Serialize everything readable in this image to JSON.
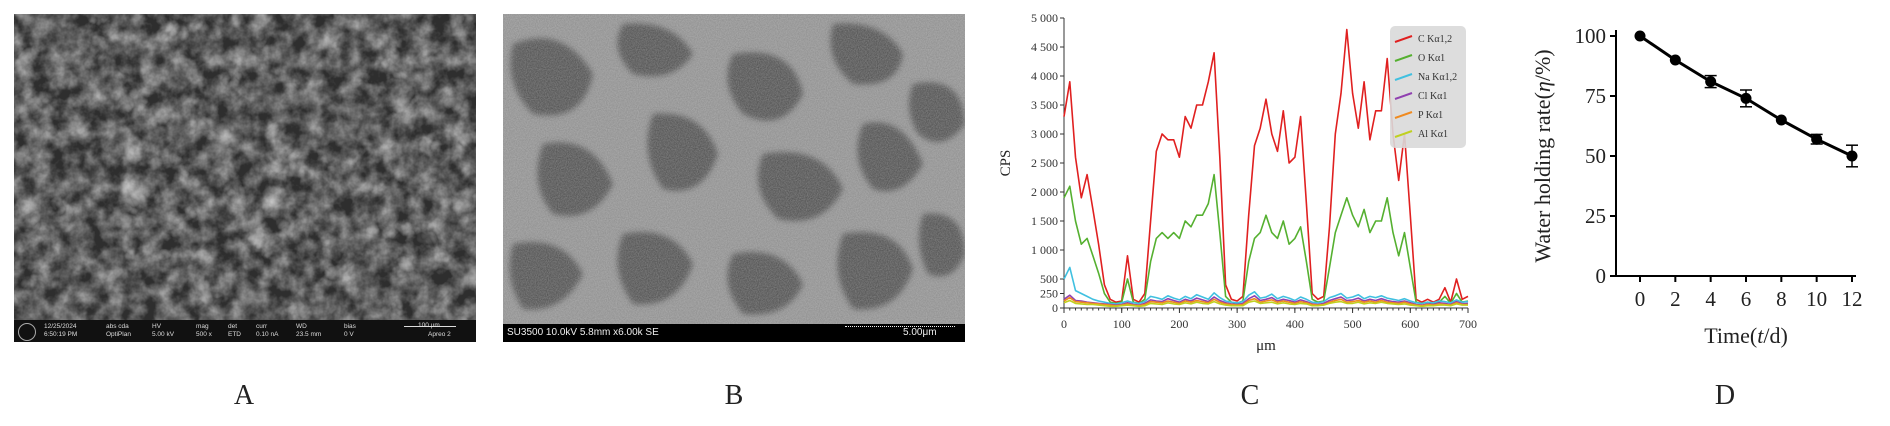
{
  "panels": {
    "a": {
      "letter": "A",
      "databar": {
        "date": "12/25/2024",
        "time": "6:50:19 PM",
        "detector_label": "HV",
        "detector_value": "5.00 kV",
        "mag_label": "mag",
        "mag_value": "500 x",
        "det_label": "det",
        "det_value": "ETD",
        "curr_label": "curr",
        "curr_value": "0.10 nA",
        "wd_label": "WD",
        "wd_value": "23.5 mm",
        "bias_label": "bias",
        "bias_value": "0 V",
        "mode_label": "abs cda",
        "mode_value": "OptiPlan",
        "scale_label": "100 μm",
        "brand": "Apreo 2"
      }
    },
    "b": {
      "letter": "B",
      "databar_left": "SU3500 10.0kV 5.8mm x6.00k SE",
      "databar_right": "5.00μm"
    },
    "c": {
      "letter": "C"
    },
    "d": {
      "letter": "D"
    }
  },
  "chart_data": [
    {
      "type": "line",
      "panel": "C",
      "xlabel": "μm",
      "ylabel": "CPS",
      "xlim": [
        0,
        700
      ],
      "ylim": [
        0,
        5000
      ],
      "xticks": [
        0,
        100,
        200,
        300,
        400,
        500,
        600,
        700
      ],
      "yticks": [
        0,
        250,
        500,
        1000,
        1500,
        2000,
        2500,
        3000,
        3500,
        4000,
        4500,
        5000
      ],
      "ytick_labels": [
        "0",
        "250",
        "500",
        "1 000",
        "1 500",
        "2 000",
        "2 500",
        "3 000",
        "3 500",
        "4 000",
        "4 500",
        "5 000"
      ],
      "legend_position": "top-right",
      "x": [
        0,
        10,
        20,
        30,
        40,
        50,
        60,
        70,
        80,
        90,
        100,
        110,
        120,
        130,
        140,
        150,
        160,
        170,
        180,
        190,
        200,
        210,
        220,
        230,
        240,
        250,
        260,
        270,
        280,
        290,
        300,
        310,
        320,
        330,
        340,
        350,
        360,
        370,
        380,
        390,
        400,
        410,
        420,
        430,
        440,
        450,
        460,
        470,
        480,
        490,
        500,
        510,
        520,
        530,
        540,
        550,
        560,
        570,
        580,
        590,
        600,
        610,
        620,
        630,
        640,
        650,
        660,
        670,
        680,
        690,
        700
      ],
      "series": [
        {
          "name": "C Kα1,2",
          "color": "#e02020",
          "values": [
            3300,
            3900,
            2600,
            1900,
            2300,
            1700,
            1100,
            400,
            150,
            100,
            120,
            900,
            150,
            100,
            250,
            1500,
            2700,
            3000,
            2900,
            2900,
            2600,
            3300,
            3100,
            3500,
            3500,
            3900,
            4400,
            2600,
            400,
            150,
            120,
            200,
            1600,
            2800,
            3100,
            3600,
            3000,
            2700,
            3400,
            2500,
            2600,
            3300,
            1800,
            250,
            150,
            200,
            1400,
            3000,
            3700,
            4800,
            3700,
            3100,
            3900,
            2900,
            3400,
            3400,
            4300,
            3000,
            2200,
            3000,
            1600,
            150,
            100,
            150,
            100,
            150,
            350,
            100,
            500,
            150,
            200
          ]
        },
        {
          "name": "O Kα1",
          "color": "#55b030",
          "values": [
            1900,
            2100,
            1500,
            1100,
            1200,
            900,
            600,
            250,
            100,
            80,
            100,
            500,
            100,
            80,
            150,
            800,
            1200,
            1300,
            1200,
            1300,
            1200,
            1500,
            1400,
            1600,
            1600,
            1800,
            2300,
            1300,
            200,
            100,
            80,
            120,
            800,
            1200,
            1300,
            1600,
            1300,
            1200,
            1500,
            1100,
            1200,
            1400,
            800,
            150,
            100,
            120,
            700,
            1300,
            1600,
            1900,
            1600,
            1400,
            1700,
            1300,
            1500,
            1500,
            1900,
            1300,
            900,
            1300,
            700,
            100,
            80,
            100,
            80,
            100,
            200,
            80,
            250,
            100,
            120
          ]
        },
        {
          "name": "Na Kα1,2",
          "color": "#40c0e0",
          "values": [
            500,
            700,
            300,
            250,
            200,
            150,
            120,
            100,
            80,
            70,
            90,
            120,
            90,
            80,
            110,
            200,
            180,
            150,
            210,
            170,
            140,
            200,
            160,
            230,
            190,
            150,
            260,
            180,
            120,
            100,
            90,
            110,
            220,
            280,
            170,
            190,
            240,
            160,
            200,
            170,
            130,
            190,
            150,
            100,
            90,
            110,
            180,
            210,
            250,
            170,
            190,
            230,
            160,
            200,
            180,
            210,
            170,
            150,
            130,
            160,
            120,
            90,
            80,
            100,
            90,
            120,
            110,
            90,
            140,
            100,
            110
          ]
        },
        {
          "name": "Cl Kα1",
          "color": "#9040b0",
          "values": [
            150,
            220,
            130,
            120,
            100,
            90,
            80,
            70,
            60,
            50,
            60,
            90,
            60,
            50,
            80,
            140,
            120,
            110,
            160,
            130,
            100,
            150,
            120,
            170,
            140,
            110,
            190,
            130,
            90,
            70,
            60,
            80,
            160,
            210,
            130,
            150,
            180,
            120,
            150,
            130,
            100,
            140,
            110,
            70,
            60,
            80,
            130,
            160,
            190,
            130,
            140,
            170,
            120,
            150,
            130,
            160,
            130,
            110,
            100,
            120,
            90,
            60,
            50,
            70,
            60,
            90,
            80,
            60,
            110,
            70,
            80
          ]
        },
        {
          "name": "P Kα1",
          "color": "#f08a20",
          "values": [
            120,
            180,
            110,
            100,
            90,
            80,
            70,
            60,
            50,
            40,
            50,
            70,
            50,
            40,
            60,
            110,
            100,
            90,
            120,
            100,
            80,
            120,
            100,
            130,
            110,
            90,
            150,
            100,
            70,
            60,
            50,
            60,
            130,
            160,
            100,
            120,
            140,
            100,
            120,
            100,
            80,
            110,
            90,
            60,
            50,
            60,
            100,
            130,
            150,
            100,
            110,
            130,
            100,
            120,
            100,
            130,
            100,
            90,
            80,
            100,
            70,
            50,
            40,
            60,
            50,
            70,
            60,
            50,
            90,
            60,
            60
          ]
        },
        {
          "name": "Al Kα1",
          "color": "#c0d020",
          "values": [
            90,
            130,
            80,
            70,
            60,
            60,
            50,
            40,
            30,
            30,
            40,
            50,
            40,
            30,
            40,
            80,
            70,
            60,
            90,
            70,
            60,
            90,
            70,
            100,
            80,
            70,
            110,
            70,
            50,
            40,
            40,
            40,
            100,
            120,
            80,
            90,
            100,
            70,
            90,
            70,
            60,
            80,
            70,
            40,
            40,
            50,
            80,
            100,
            110,
            80,
            80,
            100,
            70,
            90,
            80,
            100,
            80,
            70,
            60,
            70,
            50,
            40,
            30,
            40,
            40,
            50,
            50,
            40,
            70,
            50,
            50
          ]
        }
      ]
    },
    {
      "type": "line",
      "panel": "D",
      "xlabel_main": "Time",
      "xlabel_open": "(",
      "xlabel_var": "t",
      "xlabel_unit": "/d)",
      "ylabel_main": "Water holding rate",
      "ylabel_open": "(",
      "ylabel_var": "η",
      "ylabel_unit": "/%)",
      "xlim": [
        0,
        12
      ],
      "ylim": [
        0,
        100
      ],
      "xticks": [
        0,
        2,
        4,
        6,
        8,
        10,
        12
      ],
      "yticks": [
        0,
        25,
        50,
        75,
        100
      ],
      "x": [
        0,
        2,
        4,
        6,
        8,
        10,
        12
      ],
      "y": [
        100,
        90,
        81,
        74,
        65,
        57,
        50
      ],
      "error": [
        0,
        0,
        2.5,
        3.5,
        0,
        2,
        4.5
      ]
    }
  ]
}
